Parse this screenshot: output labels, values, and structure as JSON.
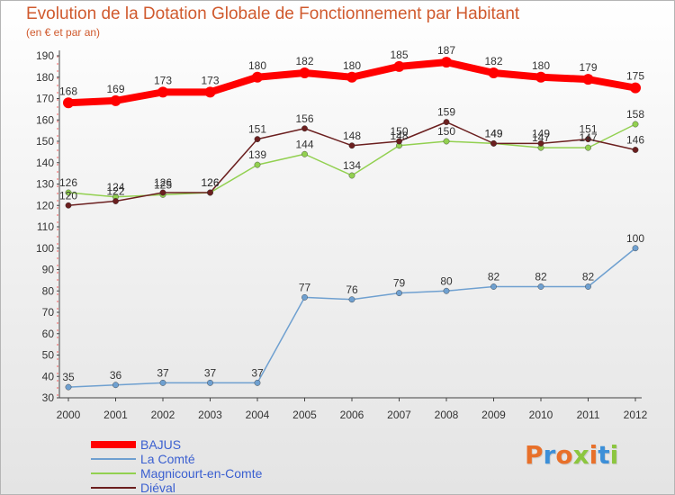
{
  "title": "Evolution de la Dotation Globale de Fonctionnement par Habitant",
  "subtitle": "(en € et par an)",
  "logo": {
    "text": "Proxiti",
    "colors": [
      "#e8702a",
      "#3c8fd8",
      "#e8702a",
      "#8cc63f",
      "#e8702a",
      "#3c8fd8",
      "#8cc63f"
    ]
  },
  "chart_data": {
    "type": "line",
    "x": [
      "2000",
      "2001",
      "2002",
      "2003",
      "2004",
      "2005",
      "2006",
      "2007",
      "2008",
      "2009",
      "2010",
      "2011",
      "2012"
    ],
    "ylim": [
      30,
      190
    ],
    "yticks": [
      30,
      40,
      50,
      60,
      70,
      80,
      90,
      100,
      110,
      120,
      130,
      140,
      150,
      160,
      170,
      180,
      190
    ],
    "grid": false,
    "legend_position": "bottom",
    "series": [
      {
        "name": "BAJUS",
        "color": "#ff0000",
        "values": [
          168,
          169,
          173,
          173,
          180,
          182,
          180,
          185,
          187,
          182,
          180,
          179,
          175
        ],
        "labels": [
          "168",
          "169",
          "173",
          "173",
          "180",
          "182",
          "180",
          "185",
          "187",
          "182",
          "180",
          "179",
          "175"
        ]
      },
      {
        "name": "La Comté",
        "color": "#6fa0d0",
        "values": [
          35,
          36,
          37,
          37,
          37,
          77,
          76,
          79,
          80,
          82,
          82,
          82,
          100
        ],
        "labels": [
          "35",
          "36",
          "37",
          "37",
          "37",
          "77",
          "76",
          "79",
          "80",
          "82",
          "82",
          "82",
          "100"
        ]
      },
      {
        "name": "Magnicourt-en-Comte",
        "color": "#92d050",
        "values": [
          126,
          124,
          125,
          126,
          139,
          144,
          134,
          148,
          150,
          149,
          147,
          147,
          158
        ],
        "labels": [
          "126",
          "124",
          "125",
          "126",
          "139",
          "144",
          "134",
          "148",
          "150",
          "149",
          "147",
          "147",
          "158"
        ]
      },
      {
        "name": "Diéval",
        "color": "#6b1f1f",
        "values": [
          120,
          122,
          126,
          126,
          151,
          156,
          148,
          150,
          159,
          149,
          149,
          151,
          146
        ],
        "labels": [
          "120",
          "122",
          "126",
          "126",
          "151",
          "156",
          "148",
          "150",
          "159",
          "149",
          "149",
          "151",
          "146"
        ]
      }
    ]
  }
}
